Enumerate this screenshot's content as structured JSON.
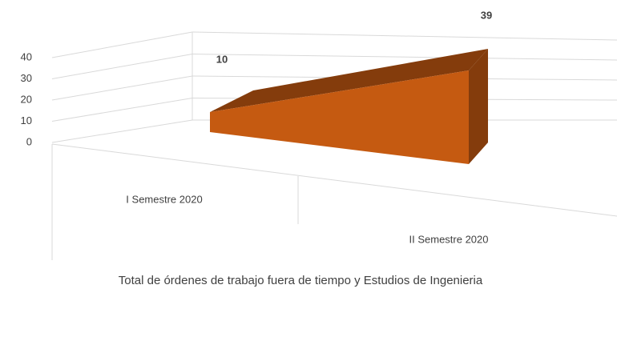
{
  "chart_data": {
    "type": "area3d",
    "x_label": "Total de órdenes de trabajo fuera de tiempo y Estudios de Ingenieria",
    "categories": [
      "I Semestre 2020",
      "II Semestre 2020"
    ],
    "values": [
      10,
      39
    ],
    "color": "#c55a11",
    "shade_color": "#843c0c",
    "ylim": [
      0,
      40
    ],
    "yticks": [
      0,
      10,
      20,
      30,
      40
    ],
    "grid": true
  }
}
